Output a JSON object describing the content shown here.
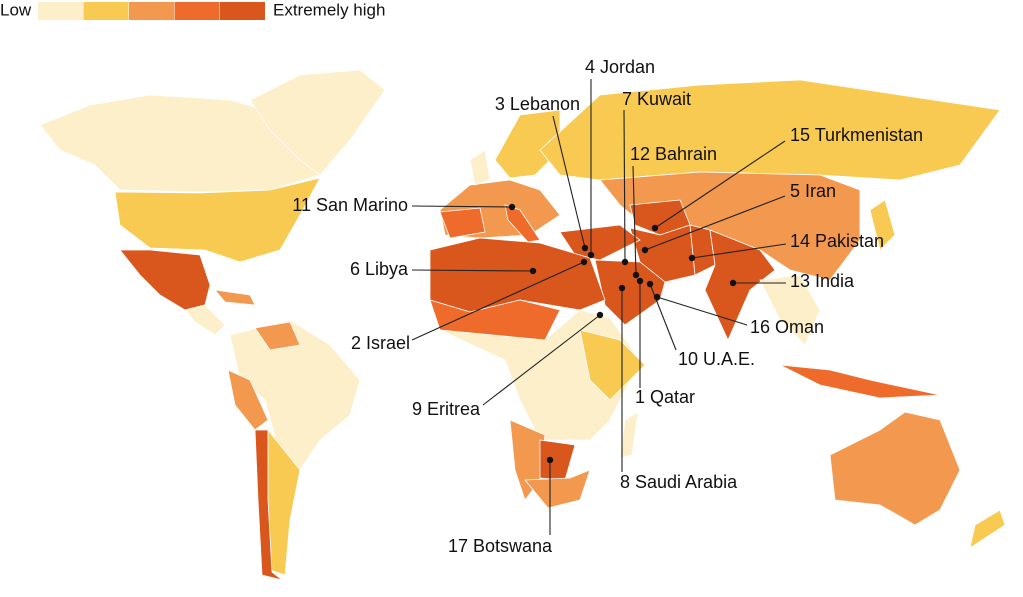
{
  "legend": {
    "low": "Low",
    "high": "Extremely high",
    "colors": [
      "#fcefc9",
      "#f9ca52",
      "#f3994f",
      "#ee6b2b",
      "#d9561d"
    ]
  },
  "labels": [
    "1 Qatar",
    "2 Israel",
    "3 Lebanon",
    "4 Jordan",
    "5 Iran",
    "6 Libya",
    "7 Kuwait",
    "8 Saudi Arabia",
    "9 Eritrea",
    "10 U.A.E.",
    "11 San Marino",
    "12 Bahrain",
    "13 India",
    "14 Pakistan",
    "15 Turkmenistan",
    "16 Oman",
    "17 Botswana"
  ]
}
